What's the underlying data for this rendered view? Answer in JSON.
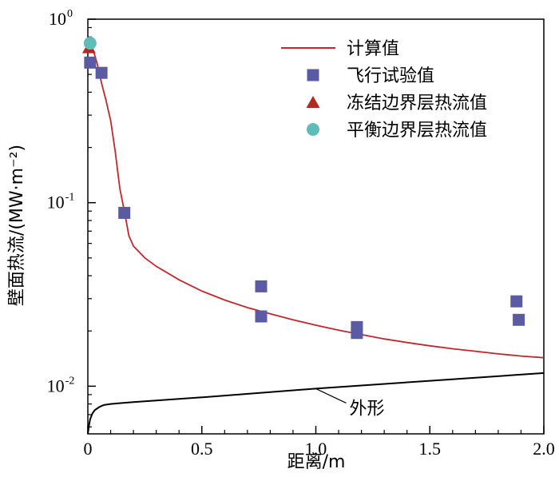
{
  "chart_data": {
    "type": "line",
    "xlabel": "距离/m",
    "ylabel": "壁面热流/(MW·m⁻²)",
    "xlim": [
      0,
      2.0
    ],
    "ylim": [
      0.0055,
      1.0
    ],
    "yscale": "log",
    "x_ticks": [
      "0",
      "0.5",
      "1.0",
      "1.5",
      "2.0"
    ],
    "y_ticks": [
      {
        "value": 1,
        "base": "10",
        "exp": "0"
      },
      {
        "value": 0.1,
        "base": "10",
        "exp": "-1"
      },
      {
        "value": 0.01,
        "base": "10",
        "exp": "-2"
      }
    ],
    "grid": false,
    "legend_position": "top-right",
    "series": [
      {
        "name": "计算值",
        "kind": "line",
        "color": "#c0282d",
        "x": [
          0,
          0.01,
          0.02,
          0.04,
          0.06,
          0.08,
          0.1,
          0.12,
          0.14,
          0.16,
          0.18,
          0.2,
          0.25,
          0.3,
          0.4,
          0.5,
          0.6,
          0.7,
          0.8,
          0.9,
          1.0,
          1.1,
          1.2,
          1.3,
          1.4,
          1.5,
          1.6,
          1.7,
          1.8,
          1.9,
          2.0
        ],
        "y": [
          0.7,
          0.72,
          0.7,
          0.58,
          0.45,
          0.36,
          0.28,
          0.19,
          0.12,
          0.09,
          0.066,
          0.058,
          0.05,
          0.045,
          0.038,
          0.033,
          0.0295,
          0.0268,
          0.0248,
          0.023,
          0.0215,
          0.0202,
          0.0191,
          0.0181,
          0.0173,
          0.0166,
          0.016,
          0.0155,
          0.015,
          0.0146,
          0.0143
        ]
      },
      {
        "name": "飞行试验值",
        "kind": "square",
        "color": "#5b5ba3",
        "x": [
          0.01,
          0.06,
          0.16,
          0.76,
          0.76,
          1.18,
          1.18,
          1.88,
          1.89
        ],
        "y": [
          0.58,
          0.51,
          0.088,
          0.035,
          0.024,
          0.021,
          0.0195,
          0.029,
          0.023
        ]
      },
      {
        "name": "冻结边界层热流值",
        "kind": "triangle",
        "color": "#b5281f",
        "x": [
          0.005
        ],
        "y": [
          0.7
        ]
      },
      {
        "name": "平衡边界层热流值",
        "kind": "circle",
        "color": "#5fbcb8",
        "x": [
          0.01
        ],
        "y": [
          0.74
        ]
      },
      {
        "name": "",
        "kind": "line",
        "color": "#000000",
        "x": [
          0,
          0.005,
          0.01,
          0.02,
          0.03,
          0.05,
          0.07,
          0.1,
          0.15,
          0.2,
          0.5,
          1.0,
          1.5,
          2.0
        ],
        "y": [
          0.0055,
          0.0061,
          0.0066,
          0.0071,
          0.0074,
          0.0077,
          0.0079,
          0.008,
          0.0081,
          0.0082,
          0.0087,
          0.0097,
          0.0107,
          0.0118
        ]
      }
    ],
    "annotations": [
      {
        "text": "外形",
        "at_x": 1.0,
        "at_y": 0.0097
      }
    ]
  }
}
